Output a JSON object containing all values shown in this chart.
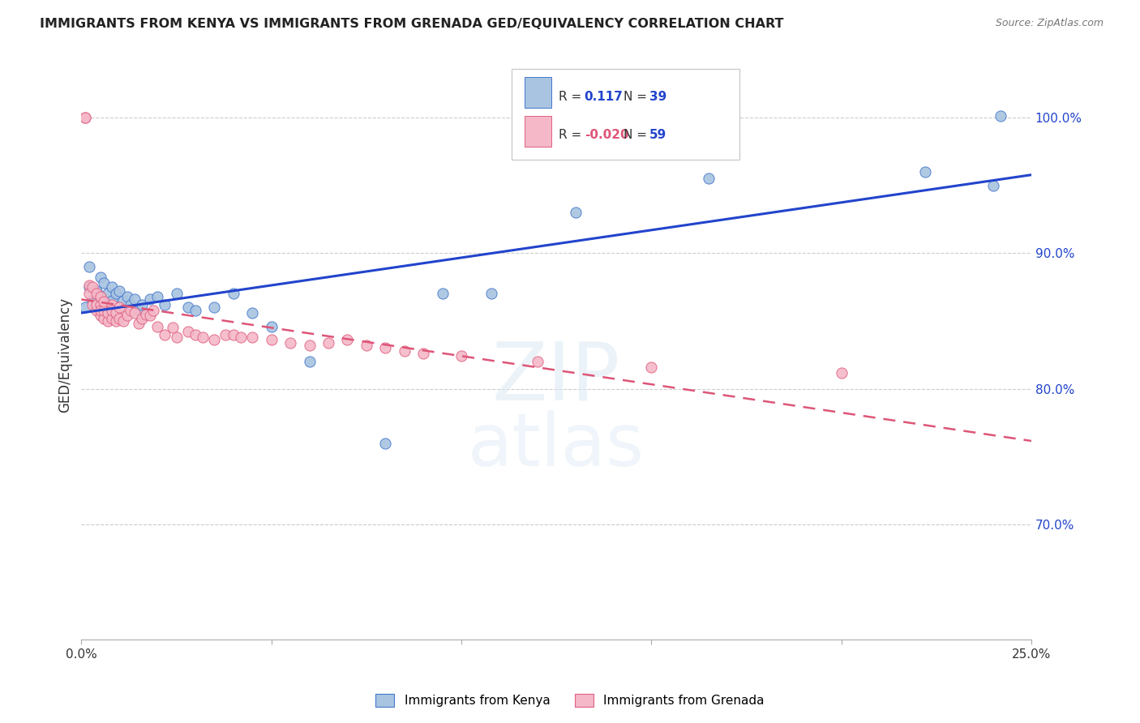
{
  "title": "IMMIGRANTS FROM KENYA VS IMMIGRANTS FROM GRENADA GED/EQUIVALENCY CORRELATION CHART",
  "source": "Source: ZipAtlas.com",
  "ylabel": "GED/Equivalency",
  "ytick_labels": [
    "70.0%",
    "80.0%",
    "90.0%",
    "100.0%"
  ],
  "ytick_values": [
    0.7,
    0.8,
    0.9,
    1.0
  ],
  "xlim": [
    0.0,
    0.25
  ],
  "ylim": [
    0.615,
    1.035
  ],
  "legend_r_kenya": "0.117",
  "legend_n_kenya": "39",
  "legend_r_grenada": "-0.020",
  "legend_n_grenada": "59",
  "color_kenya": "#a8c4e0",
  "color_grenada": "#f4b8c8",
  "color_kenya_edge": "#4477cc",
  "color_grenada_edge": "#e06080",
  "color_trendline_kenya": "#2244cc",
  "color_trendline_grenada": "#dd5577",
  "kenya_x": [
    0.001,
    0.002,
    0.002,
    0.003,
    0.004,
    0.005,
    0.005,
    0.006,
    0.006,
    0.007,
    0.008,
    0.008,
    0.009,
    0.01,
    0.011,
    0.012,
    0.013,
    0.014,
    0.015,
    0.016,
    0.018,
    0.02,
    0.022,
    0.025,
    0.028,
    0.03,
    0.035,
    0.04,
    0.045,
    0.05,
    0.06,
    0.08,
    0.095,
    0.108,
    0.13,
    0.165,
    0.222,
    0.24,
    0.242
  ],
  "kenya_y": [
    0.86,
    0.875,
    0.89,
    0.865,
    0.872,
    0.868,
    0.882,
    0.878,
    0.863,
    0.87,
    0.875,
    0.865,
    0.87,
    0.872,
    0.865,
    0.868,
    0.862,
    0.866,
    0.858,
    0.862,
    0.866,
    0.868,
    0.862,
    0.87,
    0.86,
    0.858,
    0.86,
    0.87,
    0.856,
    0.846,
    0.82,
    0.76,
    0.87,
    0.87,
    0.93,
    0.955,
    0.96,
    0.95,
    1.001
  ],
  "grenada_x": [
    0.001,
    0.001,
    0.002,
    0.002,
    0.003,
    0.003,
    0.004,
    0.004,
    0.004,
    0.005,
    0.005,
    0.005,
    0.005,
    0.006,
    0.006,
    0.006,
    0.007,
    0.007,
    0.008,
    0.008,
    0.008,
    0.009,
    0.009,
    0.01,
    0.01,
    0.011,
    0.012,
    0.013,
    0.014,
    0.015,
    0.016,
    0.017,
    0.018,
    0.019,
    0.02,
    0.022,
    0.024,
    0.025,
    0.028,
    0.03,
    0.032,
    0.035,
    0.038,
    0.04,
    0.042,
    0.045,
    0.05,
    0.055,
    0.06,
    0.065,
    0.07,
    0.075,
    0.08,
    0.085,
    0.09,
    0.1,
    0.12,
    0.15,
    0.2
  ],
  "grenada_y": [
    1.0,
    1.0,
    0.876,
    0.87,
    0.862,
    0.875,
    0.858,
    0.862,
    0.87,
    0.854,
    0.862,
    0.868,
    0.858,
    0.852,
    0.858,
    0.864,
    0.85,
    0.856,
    0.852,
    0.862,
    0.858,
    0.85,
    0.856,
    0.852,
    0.86,
    0.85,
    0.854,
    0.858,
    0.856,
    0.848,
    0.852,
    0.855,
    0.854,
    0.858,
    0.846,
    0.84,
    0.845,
    0.838,
    0.842,
    0.84,
    0.838,
    0.836,
    0.84,
    0.84,
    0.838,
    0.838,
    0.836,
    0.834,
    0.832,
    0.834,
    0.836,
    0.832,
    0.83,
    0.828,
    0.826,
    0.824,
    0.82,
    0.816,
    0.812
  ]
}
